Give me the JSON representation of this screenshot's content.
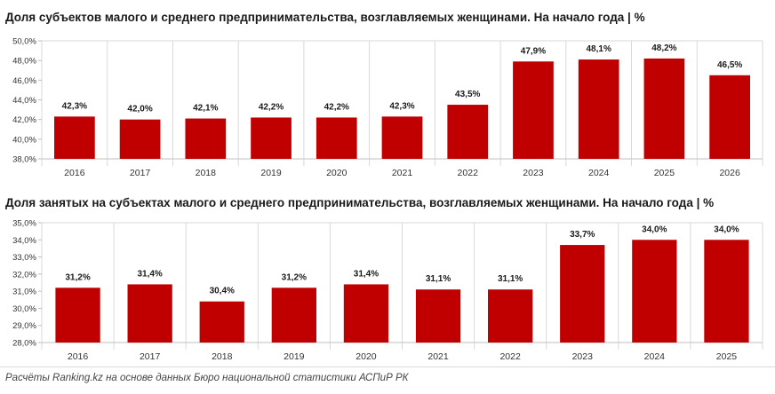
{
  "colors": {
    "bar": "#c00000",
    "grid": "#d9d9d9",
    "axis_text": "#333333"
  },
  "footer": {
    "text": "Расчёты Ranking.kz на основе данных Бюро национальной статистики АСПиР РК"
  },
  "chart_data": [
    {
      "type": "bar",
      "title": "Доля субъектов малого и среднего предпринимательства, возглавляемых женщинами. На начало года | %",
      "categories": [
        "2016",
        "2017",
        "2018",
        "2019",
        "2020",
        "2021",
        "2022",
        "2023",
        "2024",
        "2025",
        "2026"
      ],
      "values": [
        42.3,
        42.0,
        42.1,
        42.2,
        42.2,
        42.3,
        43.5,
        47.9,
        48.1,
        48.2,
        46.5
      ],
      "data_labels": [
        "42,3%",
        "42,0%",
        "42,1%",
        "42,2%",
        "42,2%",
        "42,3%",
        "43,5%",
        "47,9%",
        "48,1%",
        "48,2%",
        "46,5%"
      ],
      "ylim": [
        38,
        50
      ],
      "yticks": [
        38,
        40,
        42,
        44,
        46,
        48,
        50
      ],
      "ytick_labels": [
        "38,0%",
        "40,0%",
        "42,0%",
        "44,0%",
        "46,0%",
        "48,0%",
        "50,0%"
      ],
      "grid": "vertical category separators"
    },
    {
      "type": "bar",
      "title": "Доля занятых на субъектах малого и среднего предпринимательства, возглавляемых женщинами. На начало года | %",
      "categories": [
        "2016",
        "2017",
        "2018",
        "2019",
        "2020",
        "2021",
        "2022",
        "2023",
        "2024",
        "2025"
      ],
      "values": [
        31.2,
        31.4,
        30.4,
        31.2,
        31.4,
        31.1,
        31.1,
        33.7,
        34.0,
        34.0
      ],
      "data_labels": [
        "31,2%",
        "31,4%",
        "30,4%",
        "31,2%",
        "31,4%",
        "31,1%",
        "31,1%",
        "33,7%",
        "34,0%",
        "34,0%"
      ],
      "ylim": [
        28,
        35
      ],
      "yticks": [
        28,
        29,
        30,
        31,
        32,
        33,
        34,
        35
      ],
      "ytick_labels": [
        "28,0%",
        "29,0%",
        "30,0%",
        "31,0%",
        "32,0%",
        "33,0%",
        "34,0%",
        "35,0%"
      ],
      "grid": "vertical category separators"
    }
  ]
}
